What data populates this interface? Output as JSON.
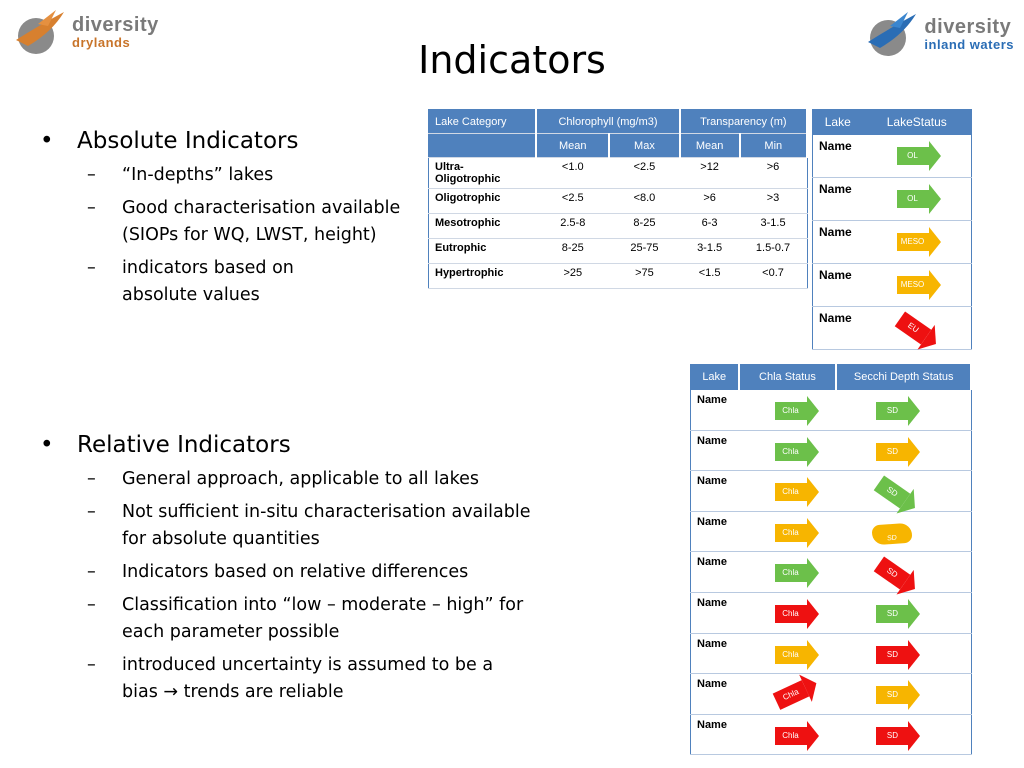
{
  "logos": {
    "left": {
      "word1": "diversity",
      "word2": "drylands"
    },
    "right": {
      "word1": "diversity",
      "word2": "inland waters"
    }
  },
  "title": "Indicators",
  "absolute": {
    "heading": "Absolute Indicators",
    "items": [
      "“In-depths” lakes",
      "Good characterisation available\n(SIOPs for WQ, LWST, height)",
      "indicators based on\nabsolute values"
    ]
  },
  "relative": {
    "heading": "Relative Indicators",
    "items": [
      "General approach, applicable to all lakes",
      "Not sufficient in-situ characterisation available\nfor absolute quantities",
      "Indicators based on relative differences",
      "Classification into “low – moderate – high” for\neach parameter possible",
      "introduced uncertainty is assumed to be a\nbias → trends are reliable"
    ]
  },
  "trophic_table": {
    "headers": {
      "category": "Lake Category",
      "chl": "Chlorophyll (mg/m3)",
      "trans": "Transparency (m)"
    },
    "subheaders": [
      "Mean",
      "Max",
      "Mean",
      "Min"
    ],
    "rows": [
      {
        "cat": "Ultra-\nOligotrophic",
        "v": [
          "<1.0",
          "<2.5",
          ">12",
          ">6"
        ]
      },
      {
        "cat": "Oligotrophic",
        "v": [
          "<2.5",
          "<8.0",
          ">6",
          ">3"
        ]
      },
      {
        "cat": "Mesotrophic",
        "v": [
          "2.5-8",
          "8-25",
          "6-3",
          "3-1.5"
        ]
      },
      {
        "cat": "Eutrophic",
        "v": [
          "8-25",
          "25-75",
          "3-1.5",
          "1.5-0.7"
        ]
      },
      {
        "cat": "Hypertrophic",
        "v": [
          ">25",
          ">75",
          "<1.5",
          "<0.7"
        ]
      }
    ]
  },
  "status_table": {
    "headers": {
      "lake": "Lake",
      "status": "LakeStatus"
    },
    "rows": [
      {
        "name": "Name",
        "label": "OL",
        "color": "green"
      },
      {
        "name": "Name",
        "label": "OL",
        "color": "green"
      },
      {
        "name": "Name",
        "label": "MESO",
        "color": "orange"
      },
      {
        "name": "Name",
        "label": "MESO",
        "color": "orange"
      },
      {
        "name": "Name",
        "label": "EU",
        "color": "red"
      }
    ]
  },
  "relative_table": {
    "headers": {
      "lake": "Lake",
      "chla": "Chla Status",
      "sd": "Secchi Depth Status"
    },
    "rows": [
      {
        "name": "Name",
        "chla": "Chla",
        "chla_color": "green",
        "sd": "SD",
        "sd_color": "green"
      },
      {
        "name": "Name",
        "chla": "Chla",
        "chla_color": "green",
        "sd": "SD",
        "sd_color": "orange"
      },
      {
        "name": "Name",
        "chla": "Chla",
        "chla_color": "orange",
        "sd": "SD",
        "sd_color": "green"
      },
      {
        "name": "Name",
        "chla": "Chla",
        "chla_color": "orange",
        "sd": "SD",
        "sd_color": "orange"
      },
      {
        "name": "Name",
        "chla": "Chla",
        "chla_color": "green",
        "sd": "SD",
        "sd_color": "red"
      },
      {
        "name": "Name",
        "chla": "Chla",
        "chla_color": "red",
        "sd": "SD",
        "sd_color": "green"
      },
      {
        "name": "Name",
        "chla": "Chla",
        "chla_color": "orange",
        "sd": "SD",
        "sd_color": "red"
      },
      {
        "name": "Name",
        "chla": "Chla",
        "chla_color": "red",
        "sd": "SD",
        "sd_color": "orange"
      },
      {
        "name": "Name",
        "chla": "Chla",
        "chla_color": "red",
        "sd": "SD",
        "sd_color": "red"
      }
    ]
  }
}
